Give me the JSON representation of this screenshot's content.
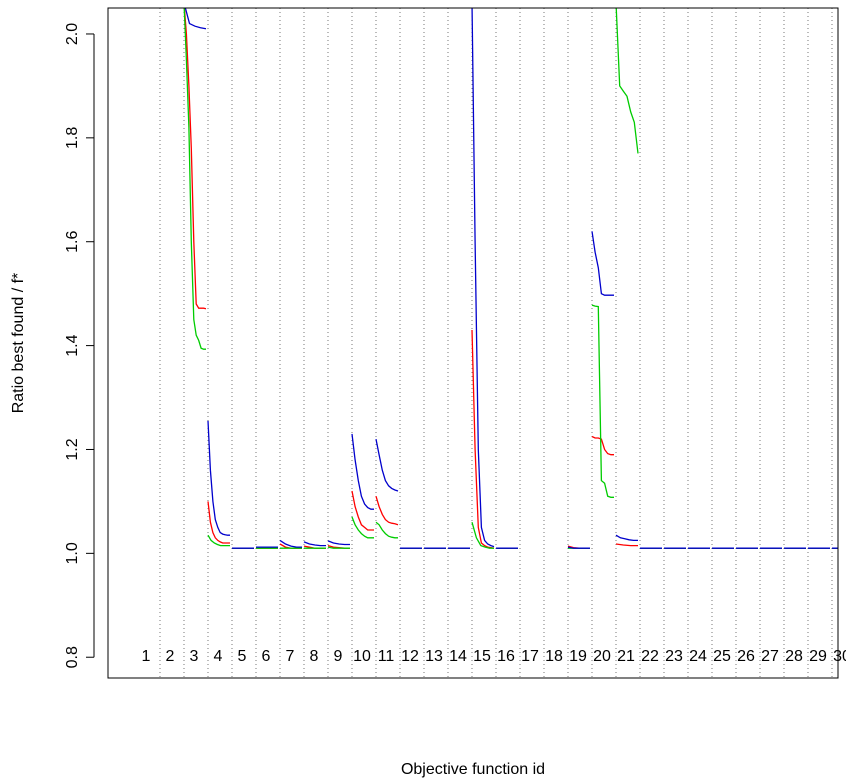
{
  "chart_data": {
    "type": "line",
    "xlabel": "Objective function id",
    "ylabel": "Ratio best found / f*",
    "ylim": [
      0.76,
      2.05
    ],
    "yticks": [
      "0.8",
      "1.0",
      "1.2",
      "1.4",
      "1.6",
      "1.8",
      "2.0"
    ],
    "categories": [
      "1",
      "2",
      "3",
      "4",
      "5",
      "6",
      "7",
      "8",
      "9",
      "10",
      "11",
      "12",
      "13",
      "14",
      "15",
      "16",
      "17",
      "18",
      "19",
      "20",
      "21",
      "22",
      "23",
      "24",
      "25",
      "26",
      "27",
      "28",
      "29",
      "30"
    ],
    "grid": "dotted vertical separators between function ids",
    "legend": "none",
    "colors": {
      "red": "#ff0000",
      "green": "#00cc00",
      "blue": "#0000cc",
      "frame": "#000000",
      "grid": "#555555"
    },
    "series": [
      {
        "color": "red",
        "segments": [
          {
            "function": 3,
            "values": [
              2.06,
              2.0,
              1.9,
              1.78,
              1.6,
              1.48,
              1.472,
              1.472,
              1.472,
              1.471
            ]
          },
          {
            "function": 4,
            "values": [
              1.1,
              1.06,
              1.04,
              1.03,
              1.025,
              1.022,
              1.02,
              1.02,
              1.02,
              1.02
            ]
          },
          {
            "function": 5,
            "values": [
              1.01,
              1.01,
              1.01,
              1.01,
              1.01
            ]
          },
          {
            "function": 6,
            "values": [
              1.01,
              1.01,
              1.01,
              1.01,
              1.01
            ]
          },
          {
            "function": 7,
            "values": [
              1.018,
              1.012,
              1.01,
              1.01,
              1.01
            ]
          },
          {
            "function": 8,
            "values": [
              1.014,
              1.012,
              1.01,
              1.01,
              1.01
            ]
          },
          {
            "function": 9,
            "values": [
              1.015,
              1.012,
              1.011,
              1.01,
              1.01
            ]
          },
          {
            "function": 10,
            "values": [
              1.12,
              1.09,
              1.07,
              1.055,
              1.05,
              1.045,
              1.045,
              1.045
            ]
          },
          {
            "function": 11,
            "values": [
              1.11,
              1.09,
              1.075,
              1.065,
              1.06,
              1.058,
              1.057,
              1.055
            ]
          },
          {
            "function": 12,
            "values": [
              1.01,
              1.01,
              1.01,
              1.01,
              1.01
            ]
          },
          {
            "function": 13,
            "values": [
              1.01,
              1.01,
              1.01,
              1.01,
              1.01
            ]
          },
          {
            "function": 14,
            "values": [
              1.01,
              1.01,
              1.01,
              1.01,
              1.01
            ]
          },
          {
            "function": 15,
            "values": [
              1.43,
              1.2,
              1.05,
              1.02,
              1.015,
              1.012,
              1.011,
              1.01
            ]
          },
          {
            "function": 16,
            "values": [
              1.01,
              1.01,
              1.01,
              1.01,
              1.01
            ]
          },
          {
            "function": 19,
            "values": [
              1.014,
              1.011,
              1.01,
              1.01,
              1.01
            ]
          },
          {
            "function": 20,
            "values": [
              1.225,
              1.222,
              1.222,
              1.22,
              1.2,
              1.192,
              1.19,
              1.19
            ]
          },
          {
            "function": 21,
            "values": [
              1.018,
              1.016,
              1.015,
              1.015
            ]
          },
          {
            "function": 22,
            "values": [
              1.01,
              1.01,
              1.01,
              1.01,
              1.01
            ]
          },
          {
            "function": 23,
            "values": [
              1.01,
              1.01,
              1.01,
              1.01,
              1.01
            ]
          },
          {
            "function": 24,
            "values": [
              1.01,
              1.01,
              1.01,
              1.01,
              1.01
            ]
          },
          {
            "function": 25,
            "values": [
              1.01,
              1.01,
              1.01,
              1.01,
              1.01
            ]
          },
          {
            "function": 26,
            "values": [
              1.01,
              1.01,
              1.01,
              1.01,
              1.01
            ]
          },
          {
            "function": 27,
            "values": [
              1.01,
              1.01,
              1.01,
              1.01,
              1.01
            ]
          },
          {
            "function": 28,
            "values": [
              1.01,
              1.01,
              1.01,
              1.01,
              1.01
            ]
          },
          {
            "function": 29,
            "values": [
              1.01,
              1.01,
              1.01,
              1.01,
              1.01
            ]
          },
          {
            "function": 30,
            "values": [
              1.01,
              1.01,
              1.01,
              1.01,
              1.01
            ]
          }
        ]
      },
      {
        "color": "green",
        "segments": [
          {
            "function": 3,
            "values": [
              2.06,
              1.95,
              1.82,
              1.6,
              1.45,
              1.42,
              1.41,
              1.395,
              1.393,
              1.393
            ]
          },
          {
            "function": 4,
            "values": [
              1.035,
              1.025,
              1.02,
              1.017,
              1.015,
              1.015,
              1.015,
              1.015
            ]
          },
          {
            "function": 5,
            "values": [
              1.01,
              1.01,
              1.01,
              1.01,
              1.01
            ]
          },
          {
            "function": 6,
            "values": [
              1.01,
              1.01,
              1.01,
              1.01,
              1.01
            ]
          },
          {
            "function": 7,
            "values": [
              1.01,
              1.01,
              1.01,
              1.01,
              1.01
            ]
          },
          {
            "function": 8,
            "values": [
              1.01,
              1.01,
              1.01,
              1.01,
              1.01
            ]
          },
          {
            "function": 9,
            "values": [
              1.012,
              1.01,
              1.01,
              1.01,
              1.01
            ]
          },
          {
            "function": 10,
            "values": [
              1.07,
              1.055,
              1.045,
              1.038,
              1.033,
              1.03,
              1.03,
              1.03
            ]
          },
          {
            "function": 11,
            "values": [
              1.06,
              1.055,
              1.045,
              1.038,
              1.033,
              1.031,
              1.03,
              1.03
            ]
          },
          {
            "function": 12,
            "values": [
              1.01,
              1.01,
              1.01,
              1.01,
              1.01
            ]
          },
          {
            "function": 13,
            "values": [
              1.01,
              1.01,
              1.01,
              1.01,
              1.01
            ]
          },
          {
            "function": 14,
            "values": [
              1.01,
              1.01,
              1.01,
              1.01,
              1.01
            ]
          },
          {
            "function": 15,
            "values": [
              1.06,
              1.03,
              1.015,
              1.012,
              1.01,
              1.01
            ]
          },
          {
            "function": 16,
            "values": [
              1.01,
              1.01,
              1.01,
              1.01,
              1.01
            ]
          },
          {
            "function": 19,
            "values": [
              1.01,
              1.01,
              1.01,
              1.01,
              1.01
            ]
          },
          {
            "function": 20,
            "values": [
              1.478,
              1.476,
              1.475,
              1.14,
              1.135,
              1.11,
              1.108,
              1.108
            ]
          },
          {
            "function": 21,
            "values": [
              2.06,
              1.9,
              1.89,
              1.88,
              1.85,
              1.83,
              1.77
            ]
          },
          {
            "function": 22,
            "values": [
              1.01,
              1.01,
              1.01,
              1.01,
              1.01
            ]
          },
          {
            "function": 23,
            "values": [
              1.01,
              1.01,
              1.01,
              1.01,
              1.01
            ]
          },
          {
            "function": 24,
            "values": [
              1.01,
              1.01,
              1.01,
              1.01,
              1.01
            ]
          },
          {
            "function": 25,
            "values": [
              1.01,
              1.01,
              1.01,
              1.01,
              1.01
            ]
          },
          {
            "function": 26,
            "values": [
              1.01,
              1.01,
              1.01,
              1.01,
              1.01
            ]
          },
          {
            "function": 27,
            "values": [
              1.01,
              1.01,
              1.01,
              1.01,
              1.01
            ]
          },
          {
            "function": 28,
            "values": [
              1.01,
              1.01,
              1.01,
              1.01,
              1.01
            ]
          },
          {
            "function": 29,
            "values": [
              1.01,
              1.01,
              1.01,
              1.01,
              1.01
            ]
          },
          {
            "function": 30,
            "values": [
              1.01,
              1.01,
              1.01,
              1.01,
              1.01
            ]
          }
        ]
      },
      {
        "color": "blue",
        "segments": [
          {
            "function": 3,
            "values": [
              2.06,
              2.02,
              2.015,
              2.012,
              2.01
            ]
          },
          {
            "function": 4,
            "values": [
              1.255,
              1.16,
              1.1,
              1.065,
              1.05,
              1.04,
              1.037,
              1.036,
              1.035,
              1.035
            ]
          },
          {
            "function": 5,
            "values": [
              1.01,
              1.01,
              1.01,
              1.01,
              1.01
            ]
          },
          {
            "function": 6,
            "values": [
              1.012,
              1.012,
              1.012,
              1.012,
              1.012
            ]
          },
          {
            "function": 7,
            "values": [
              1.025,
              1.018,
              1.014,
              1.012,
              1.012
            ]
          },
          {
            "function": 8,
            "values": [
              1.022,
              1.018,
              1.016,
              1.015,
              1.015
            ]
          },
          {
            "function": 9,
            "values": [
              1.024,
              1.02,
              1.018,
              1.017,
              1.017
            ]
          },
          {
            "function": 10,
            "values": [
              1.23,
              1.18,
              1.14,
              1.11,
              1.095,
              1.088,
              1.085,
              1.085
            ]
          },
          {
            "function": 11,
            "values": [
              1.22,
              1.19,
              1.16,
              1.14,
              1.13,
              1.125,
              1.122,
              1.12
            ]
          },
          {
            "function": 12,
            "values": [
              1.01,
              1.01,
              1.01,
              1.01,
              1.01
            ]
          },
          {
            "function": 13,
            "values": [
              1.01,
              1.01,
              1.01,
              1.01,
              1.01
            ]
          },
          {
            "function": 14,
            "values": [
              1.01,
              1.01,
              1.01,
              1.01,
              1.01
            ]
          },
          {
            "function": 15,
            "values": [
              2.06,
              1.6,
              1.2,
              1.05,
              1.025,
              1.018,
              1.015,
              1.013
            ]
          },
          {
            "function": 16,
            "values": [
              1.01,
              1.01,
              1.01,
              1.01,
              1.01
            ]
          },
          {
            "function": 19,
            "values": [
              1.012,
              1.01,
              1.01,
              1.01,
              1.01
            ]
          },
          {
            "function": 20,
            "values": [
              1.62,
              1.58,
              1.55,
              1.5,
              1.497,
              1.497,
              1.497,
              1.497
            ]
          },
          {
            "function": 21,
            "values": [
              1.035,
              1.03,
              1.028,
              1.026,
              1.025,
              1.025
            ]
          },
          {
            "function": 22,
            "values": [
              1.01,
              1.01,
              1.01,
              1.01,
              1.01
            ]
          },
          {
            "function": 23,
            "values": [
              1.01,
              1.01,
              1.01,
              1.01,
              1.01
            ]
          },
          {
            "function": 24,
            "values": [
              1.01,
              1.01,
              1.01,
              1.01,
              1.01
            ]
          },
          {
            "function": 25,
            "values": [
              1.01,
              1.01,
              1.01,
              1.01,
              1.01
            ]
          },
          {
            "function": 26,
            "values": [
              1.01,
              1.01,
              1.01,
              1.01,
              1.01
            ]
          },
          {
            "function": 27,
            "values": [
              1.01,
              1.01,
              1.01,
              1.01,
              1.01
            ]
          },
          {
            "function": 28,
            "values": [
              1.01,
              1.01,
              1.01,
              1.01,
              1.01
            ]
          },
          {
            "function": 29,
            "values": [
              1.01,
              1.01,
              1.01,
              1.01,
              1.01
            ]
          },
          {
            "function": 30,
            "values": [
              1.01,
              1.01,
              1.01,
              1.01,
              1.01
            ]
          }
        ]
      }
    ]
  }
}
